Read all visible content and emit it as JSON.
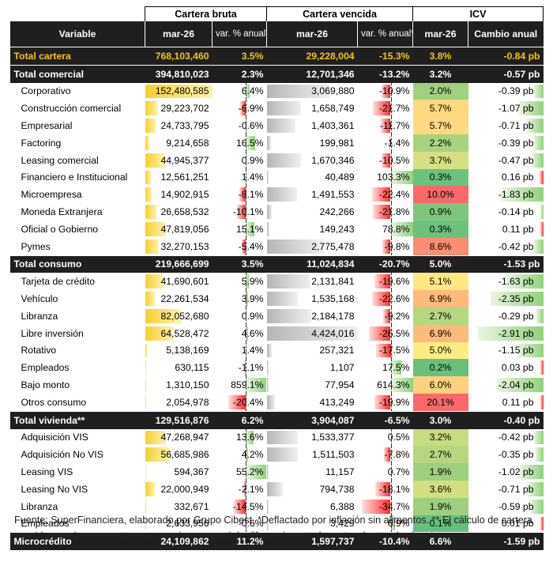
{
  "groups": {
    "cartera_bruta": "Cartera bruta",
    "cartera_vencida": "Cartera vencida",
    "icv": "ICV"
  },
  "columns": {
    "variable": "Variable",
    "bruta_mar": "mar-26",
    "bruta_var": "var. % anual*",
    "vencida_mar": "mar-26",
    "vencida_var": "var. % anual*",
    "icv_mar": "mar-26",
    "icv_cambio": "Cambio anual"
  },
  "colors": {
    "gold_total": "#f5c518",
    "heat_low": "#63be7b",
    "heat_mid": "#ffeb84",
    "heat_high": "#f8696b"
  },
  "rows": [
    {
      "type": "gold",
      "label": "Total cartera",
      "bruta": "768,103,460",
      "bruta_var": "3.5%",
      "vencida": "29,228,004",
      "vencida_var": "-15.3%",
      "icv": "3.8%",
      "cambio": "-0.84 pb"
    },
    {
      "type": "total",
      "label": "Total comercial",
      "bruta": "394,810,023",
      "bruta_var": "2.3%",
      "vencida": "12,701,346",
      "vencida_var": "-13.2%",
      "icv": "3.2%",
      "cambio": "-0.57 pb"
    },
    {
      "type": "item",
      "label": "Corporativo",
      "bruta": "152,480,585",
      "bruta_var": "6.4%",
      "vencida": "3,069,880",
      "vencida_var": "-10.9%",
      "icv": "2.0%",
      "cambio": "-0.39 pb"
    },
    {
      "type": "item",
      "label": "Construcción comercial",
      "bruta": "29,223,702",
      "bruta_var": "-6.9%",
      "vencida": "1,658,749",
      "vencida_var": "-21.7%",
      "icv": "5.7%",
      "cambio": "-1.07 pb"
    },
    {
      "type": "item",
      "label": "Empresarial",
      "bruta": "24,733,795",
      "bruta_var": "-0.6%",
      "vencida": "1,403,361",
      "vencida_var": "-11.7%",
      "icv": "5.7%",
      "cambio": "-0.71 pb"
    },
    {
      "type": "item",
      "label": "Factoring",
      "bruta": "9,214,658",
      "bruta_var": "16.5%",
      "vencida": "199,981",
      "vencida_var": "-1.4%",
      "icv": "2.2%",
      "cambio": "-0.39 pb"
    },
    {
      "type": "item",
      "label": "Leasing comercial",
      "bruta": "44,945,377",
      "bruta_var": "0.9%",
      "vencida": "1,670,346",
      "vencida_var": "-10.5%",
      "icv": "3.7%",
      "cambio": "-0.47 pb"
    },
    {
      "type": "item",
      "label": "Financiero e Institucional",
      "bruta": "12,561,251",
      "bruta_var": "1.4%",
      "vencida": "40,489",
      "vencida_var": "103.3%",
      "icv": "0.3%",
      "cambio": "0.16 pb"
    },
    {
      "type": "item",
      "label": "Microempresa",
      "bruta": "14,902,915",
      "bruta_var": "-8.1%",
      "vencida": "1,491,553",
      "vencida_var": "-22.4%",
      "icv": "10.0%",
      "cambio": "-1.83 pb"
    },
    {
      "type": "item",
      "label": "Moneda Extranjera",
      "bruta": "26,658,532",
      "bruta_var": "-10.1%",
      "vencida": "242,266",
      "vencida_var": "-21.8%",
      "icv": "0.9%",
      "cambio": "-0.14 pb"
    },
    {
      "type": "item",
      "label": "Oficial o Gobierno",
      "bruta": "47,819,056",
      "bruta_var": "15.1%",
      "vencida": "149,243",
      "vencida_var": "78.8%",
      "icv": "0.3%",
      "cambio": "0.11 pb"
    },
    {
      "type": "item",
      "label": "Pymes",
      "bruta": "32,270,153",
      "bruta_var": "-5.4%",
      "vencida": "2,775,478",
      "vencida_var": "-9.8%",
      "icv": "8.6%",
      "cambio": "-0.42 pb"
    },
    {
      "type": "total",
      "label": "Total consumo",
      "bruta": "219,666,699",
      "bruta_var": "3.5%",
      "vencida": "11,024,834",
      "vencida_var": "-20.7%",
      "icv": "5.0%",
      "cambio": "-1.53 pb"
    },
    {
      "type": "item",
      "label": "Tarjeta de crédito",
      "bruta": "41,690,601",
      "bruta_var": "5.9%",
      "vencida": "2,131,841",
      "vencida_var": "-19.6%",
      "icv": "5.1%",
      "cambio": "-1.63 pb"
    },
    {
      "type": "item",
      "label": "Vehículo",
      "bruta": "22,261,534",
      "bruta_var": "3.9%",
      "vencida": "1,535,168",
      "vencida_var": "-22.6%",
      "icv": "6.9%",
      "cambio": "-2.35 pb"
    },
    {
      "type": "item",
      "label": "Libranza",
      "bruta": "82,052,680",
      "bruta_var": "0.9%",
      "vencida": "2,184,178",
      "vencida_var": "-9.2%",
      "icv": "2.7%",
      "cambio": "-0.29 pb"
    },
    {
      "type": "item",
      "label": "Libre inversión",
      "bruta": "64,528,472",
      "bruta_var": "4.6%",
      "vencida": "4,424,016",
      "vencida_var": "-26.5%",
      "icv": "6.9%",
      "cambio": "-2.91 pb"
    },
    {
      "type": "item",
      "label": "Rotativo",
      "bruta": "5,138,169",
      "bruta_var": "1.4%",
      "vencida": "257,321",
      "vencida_var": "-17.5%",
      "icv": "5.0%",
      "cambio": "-1.15 pb"
    },
    {
      "type": "item",
      "label": "Empleados",
      "bruta": "630,115",
      "bruta_var": "-1.1%",
      "vencida": "1,107",
      "vencida_var": "17.5%",
      "icv": "0.2%",
      "cambio": "0.03 pb"
    },
    {
      "type": "item",
      "label": "Bajo monto",
      "bruta": "1,310,150",
      "bruta_var": "859.1%",
      "vencida": "77,954",
      "vencida_var": "614.3%",
      "icv": "6.0%",
      "cambio": "-2.04 pb"
    },
    {
      "type": "item",
      "label": "Otros consumo",
      "bruta": "2,054,978",
      "bruta_var": "-20.4%",
      "vencida": "413,249",
      "vencida_var": "-19.9%",
      "icv": "20.1%",
      "cambio": "0.11 pb"
    },
    {
      "type": "total",
      "label": "Total vivienda**",
      "bruta": "129,516,876",
      "bruta_var": "6.2%",
      "vencida": "3,904,087",
      "vencida_var": "-6.5%",
      "icv": "3.0%",
      "cambio": "-0.40 pb"
    },
    {
      "type": "item",
      "label": "Adquisición VIS",
      "bruta": "47,268,947",
      "bruta_var": "13.6%",
      "vencida": "1,533,377",
      "vencida_var": "0.5%",
      "icv": "3.2%",
      "cambio": "-0.42 pb"
    },
    {
      "type": "item",
      "label": "Adquisición No VIS",
      "bruta": "56,685,986",
      "bruta_var": "4.2%",
      "vencida": "1,511,503",
      "vencida_var": "-7.8%",
      "icv": "2.7%",
      "cambio": "-0.35 pb"
    },
    {
      "type": "item",
      "label": "Leasing VIS",
      "bruta": "594,367",
      "bruta_var": "55.2%",
      "vencida": "11,157",
      "vencida_var": "0.7%",
      "icv": "1.9%",
      "cambio": "-1.02 pb"
    },
    {
      "type": "item",
      "label": "Leasing No VIS",
      "bruta": "22,000,949",
      "bruta_var": "-2.1%",
      "vencida": "794,738",
      "vencida_var": "-18.1%",
      "icv": "3.6%",
      "cambio": "-0.71 pb"
    },
    {
      "type": "item",
      "label": "Libranza",
      "bruta": "332,671",
      "bruta_var": "-14.5%",
      "vencida": "6,388",
      "vencida_var": "-34.7%",
      "icv": "1.9%",
      "cambio": "-0.59 pb"
    },
    {
      "type": "item",
      "label": "Empleados",
      "bruta": "2,633,956",
      "bruta_var": "-0.6%",
      "vencida": "3,429",
      "vencida_var": "6.9%",
      "icv": "0.1%",
      "cambio": "0.01 pb"
    },
    {
      "type": "total",
      "label": "Microcrédito",
      "bruta": "24,109,862",
      "bruta_var": "11.2%",
      "vencida": "1,597,737",
      "vencida_var": "-10.4%",
      "icv": "6.6%",
      "cambio": "-1.59 pb"
    }
  ],
  "footnote": "Fuente: SuperFinanciera, elaborado por Grupo Cibest. *Deflactado por inflación sin alimentos. ** El cálculo de cartera vencida para los segmentos se aproximan a partir la diferencia entre la cartera bruta y la vigente."
}
